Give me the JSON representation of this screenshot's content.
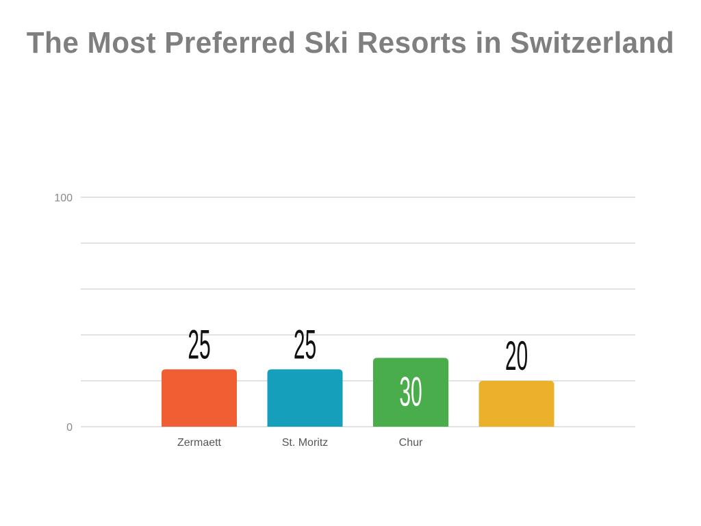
{
  "chart_data": {
    "type": "bar",
    "title": "The Most Preferred Ski Resorts in Switzerland",
    "categories": [
      "Zermaett",
      "St. Moritz",
      "Chur",
      ""
    ],
    "values": [
      25,
      25,
      30,
      20
    ],
    "colors": [
      "#f05f33",
      "#169fbb",
      "#48ad4a",
      "#ebb12a"
    ],
    "label_colors": [
      "#111111",
      "#111111",
      "#ffffff",
      "#111111"
    ],
    "ylim": [
      0,
      100
    ],
    "gridlines": [
      0,
      20,
      40,
      60,
      80,
      100
    ],
    "yticks": [
      0,
      100
    ],
    "ytick_labels": [
      "0",
      "100"
    ],
    "grid": true,
    "xlabel": "",
    "ylabel": ""
  }
}
